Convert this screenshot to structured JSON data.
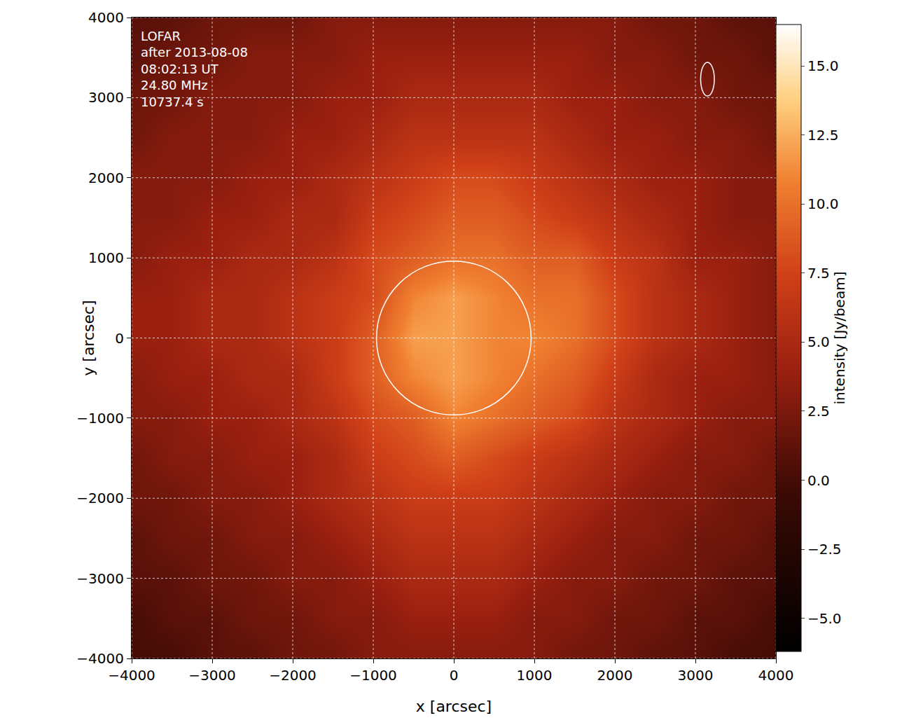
{
  "chart_data": {
    "type": "heatmap",
    "annotations": [
      "LOFAR",
      "after 2013-08-08",
      "08:02:13 UT",
      "24.80 MHz",
      "10737.4 s"
    ],
    "x_label": "x [arcsec]",
    "y_label": "y [arcsec]",
    "x": [
      -4000,
      -3500,
      -3000,
      -2500,
      -2000,
      -1500,
      -1000,
      -500,
      0,
      500,
      1000,
      1500,
      2000,
      2500,
      3000,
      3500,
      4000
    ],
    "y": [
      -4000,
      -3500,
      -3000,
      -2500,
      -2000,
      -1500,
      -1000,
      -500,
      0,
      500,
      1000,
      1500,
      2000,
      2500,
      3000,
      3500,
      4000
    ],
    "cells": [
      [
        0,
        0,
        1,
        1,
        2,
        2,
        3,
        3,
        3,
        3,
        3,
        2,
        2,
        1,
        1,
        0,
        0
      ],
      [
        0,
        1,
        1,
        2,
        2,
        3,
        3,
        4,
        4,
        4,
        3,
        3,
        2,
        2,
        1,
        1,
        0
      ],
      [
        1,
        1,
        2,
        2,
        3,
        3,
        4,
        5,
        5,
        5,
        4,
        3,
        3,
        2,
        2,
        1,
        1
      ],
      [
        1,
        2,
        2,
        3,
        3,
        4,
        5,
        6,
        6,
        6,
        5,
        4,
        3,
        3,
        2,
        2,
        1
      ],
      [
        2,
        2,
        3,
        3,
        4,
        5,
        6,
        7,
        7,
        7,
        6,
        5,
        4,
        3,
        3,
        2,
        2
      ],
      [
        2,
        3,
        3,
        4,
        4,
        5,
        7,
        8,
        9,
        8,
        7,
        6,
        5,
        4,
        3,
        3,
        2
      ],
      [
        3,
        3,
        4,
        4,
        5,
        6,
        8,
        9,
        11,
        10,
        9,
        8,
        6,
        5,
        4,
        3,
        3
      ],
      [
        3,
        4,
        4,
        5,
        5,
        7,
        9,
        11,
        12,
        11,
        10,
        9,
        7,
        5,
        4,
        4,
        3
      ],
      [
        4,
        4,
        5,
        5,
        6,
        7,
        9,
        12,
        12,
        11,
        11,
        10,
        8,
        6,
        5,
        4,
        3
      ],
      [
        4,
        4,
        5,
        5,
        6,
        7,
        8,
        11,
        12,
        11,
        10,
        10,
        8,
        6,
        5,
        4,
        3
      ],
      [
        3,
        4,
        4,
        5,
        5,
        6,
        8,
        9,
        10,
        10,
        9,
        9,
        7,
        6,
        4,
        4,
        3
      ],
      [
        3,
        3,
        4,
        4,
        5,
        5,
        7,
        8,
        9,
        9,
        8,
        7,
        6,
        5,
        4,
        3,
        3
      ],
      [
        3,
        3,
        3,
        4,
        4,
        5,
        6,
        7,
        8,
        8,
        7,
        6,
        5,
        4,
        4,
        3,
        3
      ],
      [
        2,
        3,
        3,
        3,
        4,
        4,
        5,
        6,
        6,
        6,
        6,
        5,
        4,
        4,
        3,
        3,
        2
      ],
      [
        2,
        2,
        3,
        3,
        3,
        4,
        4,
        5,
        5,
        5,
        5,
        4,
        4,
        3,
        3,
        2,
        2
      ],
      [
        1,
        2,
        2,
        3,
        3,
        3,
        4,
        4,
        4,
        4,
        4,
        4,
        3,
        3,
        2,
        2,
        1
      ],
      [
        1,
        1,
        2,
        2,
        2,
        3,
        3,
        3,
        3,
        3,
        3,
        3,
        3,
        2,
        2,
        1,
        1
      ]
    ],
    "xlim": [
      -4000,
      4000
    ],
    "ylim": [
      -4000,
      4000
    ],
    "xticks": [
      {
        "value": -4000,
        "label": "−4000"
      },
      {
        "value": -3000,
        "label": "−3000"
      },
      {
        "value": -2000,
        "label": "−2000"
      },
      {
        "value": -1000,
        "label": "−1000"
      },
      0,
      1000,
      2000,
      3000,
      4000
    ],
    "yticks": [
      {
        "value": -4000,
        "label": "−4000"
      },
      {
        "value": -3000,
        "label": "−3000"
      },
      {
        "value": -2000,
        "label": "−2000"
      },
      {
        "value": -1000,
        "label": "−1000"
      },
      0,
      1000,
      2000,
      3000,
      4000
    ],
    "grid": true,
    "disk_radius": 960,
    "beam": {
      "x": 3150,
      "y": 3230,
      "width": 170,
      "height": 420
    },
    "colorbar": {
      "title": "intensity [Jy/beam]",
      "zlim": [
        -6.2,
        16.5
      ],
      "ticks": [
        {
          "value": -5,
          "label": "−5.0"
        },
        {
          "value": -2.5,
          "label": "−2.5"
        },
        {
          "value": 0,
          "label": "0.0"
        },
        {
          "value": 2.5,
          "label": "2.5"
        },
        {
          "value": 5,
          "label": "5.0"
        },
        {
          "value": 7.5,
          "label": "7.5"
        },
        {
          "value": 10,
          "label": "10.0"
        },
        {
          "value": 12.5,
          "label": "12.5"
        },
        {
          "value": 15,
          "label": "15.0"
        }
      ]
    }
  }
}
